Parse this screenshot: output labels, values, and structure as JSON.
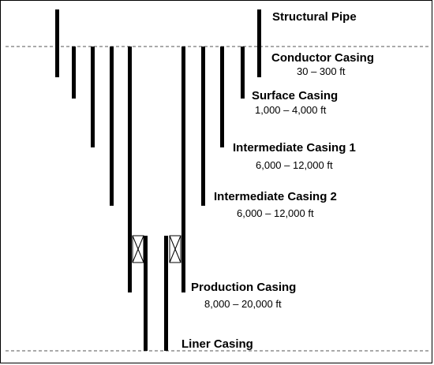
{
  "casings": {
    "structural_pipe": {
      "name": "Structural Pipe"
    },
    "conductor": {
      "name": "Conductor Casing",
      "depth": "30 – 300 ft"
    },
    "surface": {
      "name": "Surface Casing",
      "depth": "1,000 – 4,000 ft"
    },
    "intermediate_1": {
      "name": "Intermediate Casing 1",
      "depth": "6,000 – 12,000 ft"
    },
    "intermediate_2": {
      "name": "Intermediate Casing 2",
      "depth": "6,000 – 12,000 ft"
    },
    "production": {
      "name": "Production Casing",
      "depth": "8,000 – 20,000 ft"
    },
    "liner": {
      "name": "Liner Casing"
    }
  },
  "colors": {
    "line": "#000000",
    "dashed": "#555555",
    "background": "#ffffff"
  }
}
